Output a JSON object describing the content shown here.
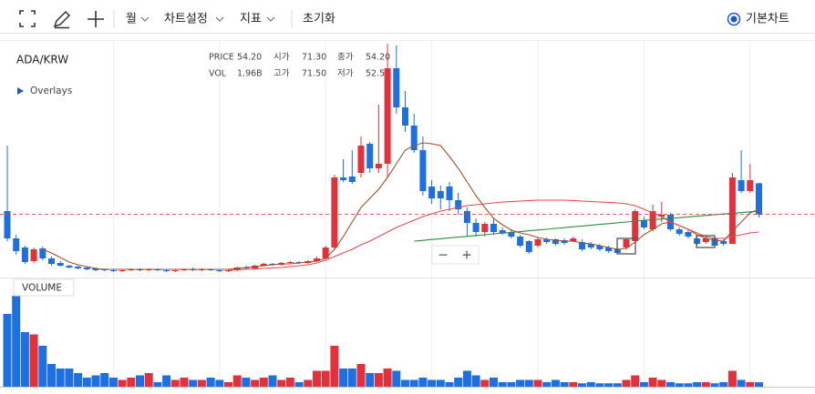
{
  "toolbar": {
    "period": "월",
    "settings": "차트설정",
    "indicators": "지표",
    "reset": "초기화",
    "chart_mode": "기본차트"
  },
  "chart_data": {
    "type": "candlestick",
    "title": "ADA/KRW",
    "overlays": "Overlays",
    "volume_title": "VOLUME",
    "zoom": {
      "out": "−",
      "in": "+"
    },
    "info": [
      [
        "PRICE",
        "54.20"
      ],
      [
        "시가",
        "71.30"
      ],
      [
        "종가",
        "54.20"
      ],
      [
        "VOL",
        "1.96B"
      ],
      [
        "고가",
        "71.50"
      ],
      [
        "저가",
        "52.5"
      ]
    ],
    "up_color": "#e0323c",
    "down_color": "#1e6fe0",
    "ylim": [
      19.5,
      149.5
    ],
    "volume_lim": [
      0,
      42
    ],
    "open": [
      56,
      41,
      36,
      28.5,
      35.5,
      30,
      27.5,
      26,
      25.5,
      25,
      24.5,
      24,
      23.5,
      23,
      23.5,
      24,
      23.5,
      24,
      23.5,
      23,
      23.5,
      24,
      23.5,
      24,
      23.5,
      23,
      23.5,
      25,
      24.5,
      26,
      27,
      26.5,
      27.5,
      28,
      27.5,
      28.5,
      30,
      36,
      74.5,
      75,
      77,
      93,
      79.5,
      82,
      134.5,
      113,
      103,
      89.5,
      69.5,
      67,
      69.5,
      62,
      56,
      49.5,
      44.5,
      49,
      45.5,
      44.5,
      42,
      39.5,
      37,
      40.5,
      40.5,
      40,
      39.5,
      39,
      38,
      37,
      36,
      35,
      36,
      39.5,
      51,
      46,
      53,
      54,
      46,
      44.5,
      41,
      39,
      41,
      39.5,
      38,
      73,
      67,
      71.3
    ],
    "high": [
      92,
      43,
      37,
      36,
      36.5,
      31,
      28.5,
      26.5,
      26,
      25.5,
      25,
      24.5,
      24,
      24,
      24.5,
      24.5,
      24.5,
      24.5,
      24,
      24,
      24.5,
      25,
      24.5,
      24.5,
      24,
      24,
      25.5,
      26,
      26.5,
      27.5,
      27.5,
      28,
      28.5,
      28.5,
      29,
      31,
      37,
      76,
      84.5,
      89.5,
      97,
      94,
      114.5,
      148,
      147,
      122,
      109.5,
      97,
      73,
      70,
      72,
      66,
      58,
      52,
      50,
      52,
      47,
      46,
      43,
      40,
      41.5,
      41.5,
      41,
      41,
      42,
      40.5,
      39,
      38,
      37,
      36,
      41,
      57,
      53,
      59.5,
      61,
      55,
      47,
      45.5,
      42,
      42,
      42,
      40.5,
      77,
      89.5,
      82,
      71.5
    ],
    "low": [
      39.5,
      32,
      27,
      27.5,
      29,
      26,
      25.5,
      24.5,
      24,
      23.5,
      23,
      23,
      22.5,
      22.5,
      23,
      23,
      23,
      23,
      22.5,
      22.5,
      23,
      23,
      23,
      23,
      22.5,
      22.5,
      23,
      24,
      24,
      25.5,
      26,
      26,
      27,
      27,
      27,
      28,
      29.5,
      35,
      72,
      71,
      74.5,
      77,
      77,
      74.5,
      109.5,
      99.5,
      88,
      64.5,
      60,
      57,
      56,
      54,
      42,
      42,
      42,
      43,
      43,
      41,
      36,
      32.5,
      36,
      38,
      37,
      37.5,
      39,
      34,
      35,
      34,
      33,
      32.5,
      35,
      39,
      46,
      45,
      50,
      45,
      42.5,
      41,
      37,
      38,
      36,
      37,
      38,
      66,
      66,
      52.5
    ],
    "close": [
      41,
      34,
      28,
      35,
      30,
      27,
      26,
      25,
      24.5,
      24,
      23.5,
      23.5,
      23,
      23.5,
      24,
      23.5,
      24,
      23.5,
      23,
      23.5,
      24,
      23.5,
      24,
      23.5,
      23,
      23.5,
      25,
      24.5,
      26,
      27,
      26.5,
      27.5,
      28,
      27.5,
      28.5,
      30,
      36,
      74.5,
      73,
      72,
      92,
      79.5,
      82,
      134.5,
      113,
      103,
      89.5,
      67,
      63,
      63,
      62,
      57,
      49.5,
      44.5,
      49,
      44.5,
      44,
      42,
      37,
      33.5,
      40.5,
      39,
      38,
      38.5,
      41,
      35,
      36,
      35,
      34,
      33,
      40.5,
      56,
      47,
      56,
      54,
      46,
      43.5,
      42,
      38,
      41,
      37,
      38,
      74.5,
      67,
      73,
      54.2
    ],
    "volume": [
      32,
      40,
      24,
      23,
      18,
      10,
      8,
      8,
      6,
      4,
      5,
      6,
      4,
      3,
      4,
      5,
      6,
      2,
      5,
      3,
      4,
      3,
      3,
      4,
      3,
      2,
      5,
      4,
      3,
      4,
      5,
      3,
      4,
      2,
      3,
      7,
      7,
      18,
      8,
      8,
      10,
      6,
      6,
      8,
      7,
      3,
      3,
      4,
      3,
      3,
      2,
      4,
      7,
      5,
      3,
      4,
      2,
      2,
      3,
      3,
      3,
      2,
      3,
      2,
      2,
      1.5,
      2,
      1.5,
      1.5,
      1.5,
      3,
      5,
      2,
      4,
      3,
      2,
      1.5,
      1.5,
      2,
      2,
      1.5,
      2,
      7,
      3,
      2,
      1.96
    ],
    "series": [
      {
        "color": "#a0522d",
        "values": [
          null,
          null,
          null,
          null,
          35,
          33,
          30.5,
          28,
          26.5,
          25.5,
          24.5,
          24,
          24,
          24,
          24,
          24,
          24,
          24,
          24,
          24,
          24,
          24,
          24,
          24,
          24,
          24,
          24.5,
          25,
          25.5,
          26,
          26.5,
          27,
          27,
          27.5,
          28,
          28.5,
          30,
          35,
          42,
          50,
          58,
          63,
          68,
          74.5,
          82,
          89.5,
          92,
          93.5,
          93,
          92,
          86,
          79.5,
          72,
          64.5,
          58,
          52,
          48.5,
          45.5,
          44,
          43,
          41.5,
          40.5,
          40,
          39.5,
          39.5,
          38.5,
          38,
          37,
          36,
          35,
          35.5,
          39,
          43,
          46,
          49,
          50,
          48,
          46,
          43,
          41,
          40,
          39.5,
          45,
          50,
          55,
          57
        ]
      },
      {
        "color": "#e8474f",
        "values": [
          null,
          null,
          null,
          null,
          null,
          null,
          null,
          null,
          null,
          null,
          null,
          null,
          null,
          null,
          null,
          null,
          null,
          null,
          null,
          null,
          null,
          null,
          null,
          null,
          null,
          23.5,
          23.7,
          24,
          24.2,
          24.5,
          24.8,
          25,
          25.5,
          26,
          26.5,
          27.5,
          29,
          31,
          33,
          35,
          37.5,
          39.5,
          42,
          44.5,
          47,
          49,
          51,
          53,
          54.5,
          56,
          57,
          58,
          59,
          59.5,
          60,
          60.5,
          61,
          61.2,
          61.5,
          61.8,
          62,
          62,
          62,
          62,
          61.8,
          61.5,
          61.3,
          61,
          60.8,
          60.5,
          60,
          59,
          57,
          55,
          53,
          50,
          48,
          46,
          44,
          42,
          41,
          41,
          42,
          43,
          44,
          44.5
        ]
      },
      {
        "color": "#2e8b3e",
        "values": [
          null,
          null,
          null,
          null,
          null,
          null,
          null,
          null,
          null,
          null,
          null,
          null,
          null,
          null,
          null,
          null,
          null,
          null,
          null,
          null,
          null,
          null,
          null,
          null,
          null,
          null,
          null,
          null,
          null,
          null,
          null,
          null,
          null,
          null,
          null,
          null,
          null,
          null,
          null,
          null,
          null,
          null,
          null,
          null,
          null,
          null,
          39.5,
          39.9,
          40.4,
          40.8,
          41.3,
          41.7,
          42.1,
          42.6,
          43,
          43.5,
          43.9,
          44.3,
          44.7,
          45.2,
          45.6,
          46,
          46.5,
          46.9,
          47.4,
          47.8,
          48.2,
          48.7,
          49.1,
          49.6,
          50,
          50.5,
          50.9,
          51.3,
          51.7,
          52,
          52.4,
          52.8,
          53.2,
          53.6,
          54,
          54.4,
          54.8,
          55.2,
          55.6,
          56
        ]
      }
    ]
  }
}
